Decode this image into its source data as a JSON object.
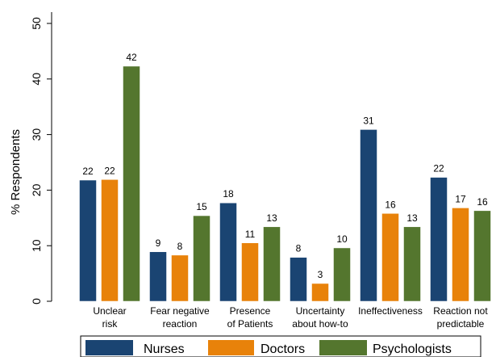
{
  "chart_data": {
    "type": "bar",
    "title": "",
    "xlabel": "",
    "ylabel": "% Respondents",
    "ylim": [
      0,
      50
    ],
    "yticks": [
      0,
      10,
      20,
      30,
      40,
      50
    ],
    "grid": false,
    "legend_position": "bottom",
    "categories": [
      [
        "Unclear",
        "risk"
      ],
      [
        "Fear negative",
        "reaction"
      ],
      [
        "Presence",
        "of Patients"
      ],
      [
        "Uncertainty",
        "about how-to"
      ],
      [
        "Ineffectiveness"
      ],
      [
        "Reaction not",
        "predictable"
      ]
    ],
    "series": [
      {
        "name": "Nurses",
        "color": "#1a4472",
        "values": [
          22,
          9,
          18,
          8,
          31,
          22
        ]
      },
      {
        "name": "Doctors",
        "color": "#e8820a",
        "values": [
          22,
          8,
          11,
          3,
          16,
          17
        ]
      },
      {
        "name": "Psychologists",
        "color": "#54762e",
        "values": [
          42,
          15,
          13,
          10,
          13,
          16
        ]
      }
    ],
    "bar_values": [
      [
        21.8,
        8.9,
        17.7,
        7.9,
        30.9,
        22.3
      ],
      [
        21.9,
        8.3,
        10.5,
        3.2,
        15.8,
        16.8
      ],
      [
        42.3,
        15.4,
        13.4,
        9.6,
        13.4,
        16.3
      ]
    ]
  }
}
